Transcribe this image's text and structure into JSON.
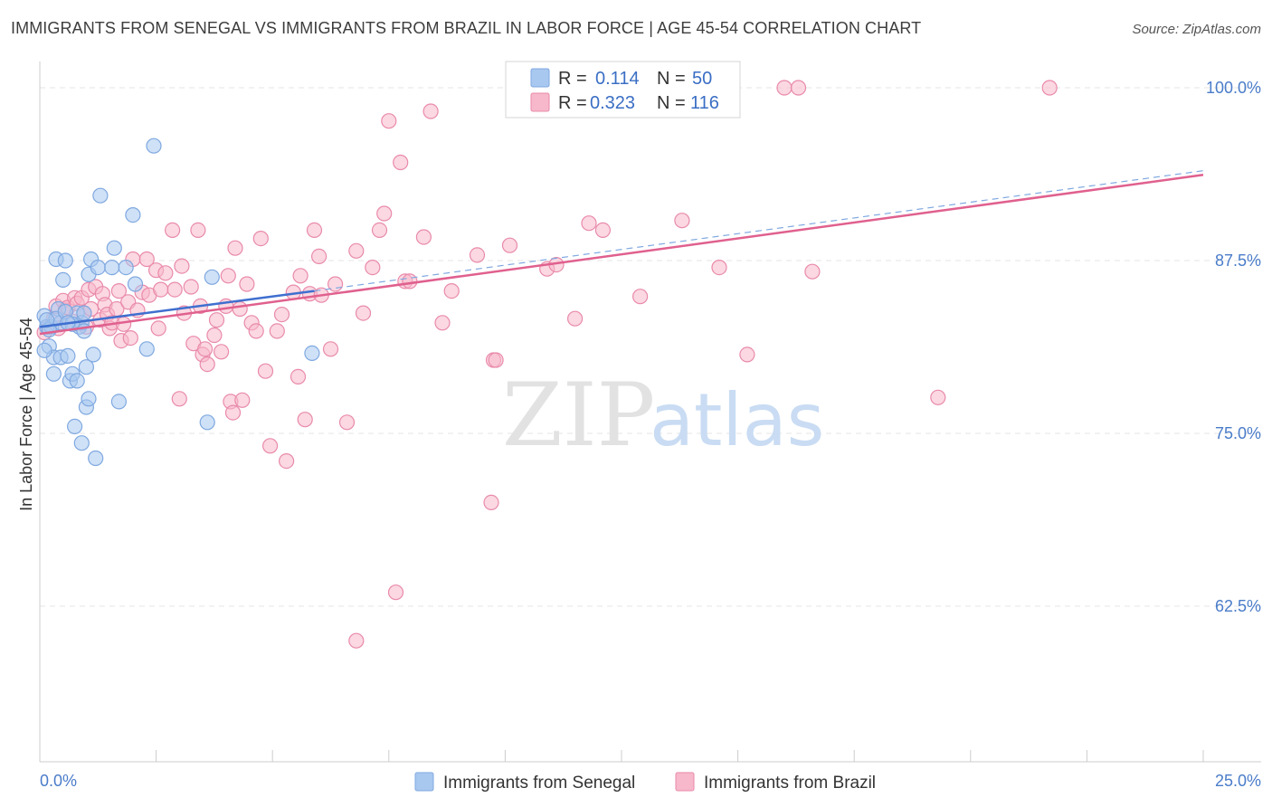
{
  "header": {
    "title": "IMMIGRANTS FROM SENEGAL VS IMMIGRANTS FROM BRAZIL IN LABOR FORCE | AGE 45-54 CORRELATION CHART",
    "source": "Source: ZipAtlas.com"
  },
  "watermark": {
    "zip": "ZIP",
    "atlas": "atlas"
  },
  "legend_box": {
    "rows": [
      {
        "r_label": "R =",
        "r_value": "0.114",
        "n_label": "N =",
        "n_value": "50",
        "color": "#a8c8f0"
      },
      {
        "r_label": "R =",
        "r_value": "0.323",
        "n_label": "N =",
        "n_value": "116",
        "color": "#f7b8cb"
      }
    ]
  },
  "chart_data": {
    "type": "scatter",
    "title": "IMMIGRANTS FROM SENEGAL VS IMMIGRANTS FROM BRAZIL IN LABOR FORCE | AGE 45-54 CORRELATION CHART",
    "xlabel": "",
    "ylabel": "In Labor Force | Age 45-54",
    "xlim": [
      0,
      25
    ],
    "ylim": [
      50.5,
      101.5
    ],
    "x_tick_labels": [
      "0.0%",
      "25.0%"
    ],
    "y_ticks": [
      62.5,
      75.0,
      87.5,
      100.0
    ],
    "y_tick_labels": [
      "62.5%",
      "75.0%",
      "87.5%",
      "100.0%"
    ],
    "grid": true,
    "legend_position": "bottom",
    "series": [
      {
        "name": "Immigrants from Senegal",
        "color": "#7fa8e0",
        "fill": "#a8c8f0",
        "trend": {
          "x": [
            0,
            5.9
          ],
          "y": [
            82.7,
            85.3
          ],
          "dashed_extension_to": [
            25,
            94.0
          ]
        },
        "points": [
          [
            0.1,
            83.5
          ],
          [
            0.15,
            82.7
          ],
          [
            0.2,
            81.3
          ],
          [
            0.25,
            82.7
          ],
          [
            0.3,
            80.5
          ],
          [
            0.3,
            79.3
          ],
          [
            0.35,
            87.6
          ],
          [
            0.4,
            84.0
          ],
          [
            0.45,
            80.5
          ],
          [
            0.45,
            83.0
          ],
          [
            0.5,
            86.1
          ],
          [
            0.55,
            87.5
          ],
          [
            0.6,
            80.6
          ],
          [
            0.65,
            78.8
          ],
          [
            0.7,
            79.3
          ],
          [
            0.75,
            75.5
          ],
          [
            0.8,
            83.7
          ],
          [
            0.8,
            78.8
          ],
          [
            0.85,
            82.7
          ],
          [
            0.9,
            74.3
          ],
          [
            0.9,
            83.0
          ],
          [
            0.95,
            83.7
          ],
          [
            1.0,
            76.9
          ],
          [
            1.0,
            79.8
          ],
          [
            1.05,
            86.5
          ],
          [
            1.05,
            77.5
          ],
          [
            1.1,
            87.6
          ],
          [
            1.15,
            80.7
          ],
          [
            1.2,
            73.2
          ],
          [
            1.25,
            87.0
          ],
          [
            1.3,
            92.2
          ],
          [
            1.55,
            87.0
          ],
          [
            1.6,
            88.4
          ],
          [
            1.7,
            77.3
          ],
          [
            1.85,
            87.0
          ],
          [
            2.0,
            90.8
          ],
          [
            2.05,
            85.8
          ],
          [
            2.3,
            81.1
          ],
          [
            2.45,
            95.8
          ],
          [
            3.6,
            75.8
          ],
          [
            3.7,
            86.3
          ],
          [
            5.85,
            80.8
          ],
          [
            0.1,
            81.0
          ],
          [
            0.2,
            82.5
          ],
          [
            0.35,
            83.3
          ],
          [
            0.55,
            83.8
          ],
          [
            0.7,
            82.9
          ],
          [
            0.95,
            82.4
          ],
          [
            0.15,
            83.2
          ],
          [
            0.6,
            83.0
          ]
        ]
      },
      {
        "name": "Immigrants from Brazil",
        "color": "#e98aaa",
        "fill": "#f7b8cb",
        "trend": {
          "x": [
            0,
            25
          ],
          "y": [
            82.2,
            93.7
          ]
        },
        "points": [
          [
            0.1,
            82.3
          ],
          [
            0.2,
            82.7
          ],
          [
            0.3,
            83.3
          ],
          [
            0.35,
            84.2
          ],
          [
            0.4,
            82.6
          ],
          [
            0.5,
            84.6
          ],
          [
            0.55,
            83.9
          ],
          [
            0.6,
            84.1
          ],
          [
            0.7,
            83.1
          ],
          [
            0.75,
            84.8
          ],
          [
            0.8,
            84.4
          ],
          [
            0.9,
            84.8
          ],
          [
            0.95,
            83.7
          ],
          [
            1.0,
            82.7
          ],
          [
            1.05,
            85.4
          ],
          [
            1.1,
            84.0
          ],
          [
            1.2,
            85.6
          ],
          [
            1.3,
            83.2
          ],
          [
            1.35,
            85.1
          ],
          [
            1.4,
            84.3
          ],
          [
            1.45,
            83.6
          ],
          [
            1.5,
            82.6
          ],
          [
            1.55,
            83.0
          ],
          [
            1.65,
            84.0
          ],
          [
            1.7,
            85.3
          ],
          [
            1.75,
            81.7
          ],
          [
            1.8,
            82.9
          ],
          [
            1.9,
            84.5
          ],
          [
            1.95,
            81.9
          ],
          [
            2.0,
            87.6
          ],
          [
            2.1,
            83.9
          ],
          [
            2.2,
            85.2
          ],
          [
            2.3,
            87.6
          ],
          [
            2.35,
            85.0
          ],
          [
            2.5,
            86.8
          ],
          [
            2.55,
            82.6
          ],
          [
            2.6,
            85.4
          ],
          [
            2.7,
            86.6
          ],
          [
            2.85,
            89.7
          ],
          [
            2.9,
            85.4
          ],
          [
            3.0,
            77.5
          ],
          [
            3.05,
            87.1
          ],
          [
            3.1,
            83.7
          ],
          [
            3.25,
            85.6
          ],
          [
            3.3,
            81.5
          ],
          [
            3.4,
            89.7
          ],
          [
            3.45,
            84.2
          ],
          [
            3.5,
            80.7
          ],
          [
            3.55,
            81.1
          ],
          [
            3.6,
            80.0
          ],
          [
            3.75,
            82.1
          ],
          [
            3.8,
            83.2
          ],
          [
            3.9,
            80.9
          ],
          [
            4.0,
            84.2
          ],
          [
            4.05,
            86.4
          ],
          [
            4.1,
            77.3
          ],
          [
            4.15,
            76.5
          ],
          [
            4.2,
            88.4
          ],
          [
            4.3,
            84.0
          ],
          [
            4.35,
            77.4
          ],
          [
            4.45,
            85.8
          ],
          [
            4.55,
            83.0
          ],
          [
            4.65,
            82.4
          ],
          [
            4.75,
            89.1
          ],
          [
            4.85,
            79.5
          ],
          [
            4.95,
            74.1
          ],
          [
            5.1,
            82.4
          ],
          [
            5.2,
            83.6
          ],
          [
            5.3,
            73.0
          ],
          [
            5.45,
            85.2
          ],
          [
            5.55,
            79.1
          ],
          [
            5.6,
            86.4
          ],
          [
            5.7,
            76.0
          ],
          [
            5.8,
            85.1
          ],
          [
            5.9,
            89.7
          ],
          [
            6.0,
            87.8
          ],
          [
            6.05,
            85.0
          ],
          [
            6.25,
            81.1
          ],
          [
            6.35,
            85.8
          ],
          [
            6.6,
            75.8
          ],
          [
            6.8,
            88.2
          ],
          [
            6.95,
            83.7
          ],
          [
            7.15,
            87.0
          ],
          [
            7.3,
            89.7
          ],
          [
            7.4,
            90.9
          ],
          [
            7.5,
            97.6
          ],
          [
            7.65,
            63.5
          ],
          [
            7.75,
            94.6
          ],
          [
            7.85,
            86.0
          ],
          [
            7.95,
            86.0
          ],
          [
            8.25,
            89.2
          ],
          [
            8.4,
            98.3
          ],
          [
            8.65,
            83.0
          ],
          [
            8.85,
            85.3
          ],
          [
            9.4,
            87.9
          ],
          [
            9.7,
            70.0
          ],
          [
            9.75,
            80.3
          ],
          [
            9.8,
            80.3
          ],
          [
            10.1,
            88.6
          ],
          [
            10.9,
            86.9
          ],
          [
            11.1,
            87.2
          ],
          [
            11.5,
            83.3
          ],
          [
            11.8,
            90.2
          ],
          [
            12.1,
            89.7
          ],
          [
            12.9,
            84.9
          ],
          [
            13.8,
            90.4
          ],
          [
            14.0,
            100.0
          ],
          [
            14.6,
            87.0
          ],
          [
            15.2,
            80.7
          ],
          [
            16.0,
            100.0
          ],
          [
            16.3,
            100.0
          ],
          [
            16.6,
            86.7
          ],
          [
            19.3,
            77.6
          ],
          [
            21.7,
            100.0
          ],
          [
            6.8,
            60.0
          ],
          [
            11.8,
            100.0
          ]
        ]
      }
    ]
  },
  "bottom_legend": {
    "items": [
      {
        "label": "Immigrants from Senegal"
      },
      {
        "label": "Immigrants from Brazil"
      }
    ]
  }
}
